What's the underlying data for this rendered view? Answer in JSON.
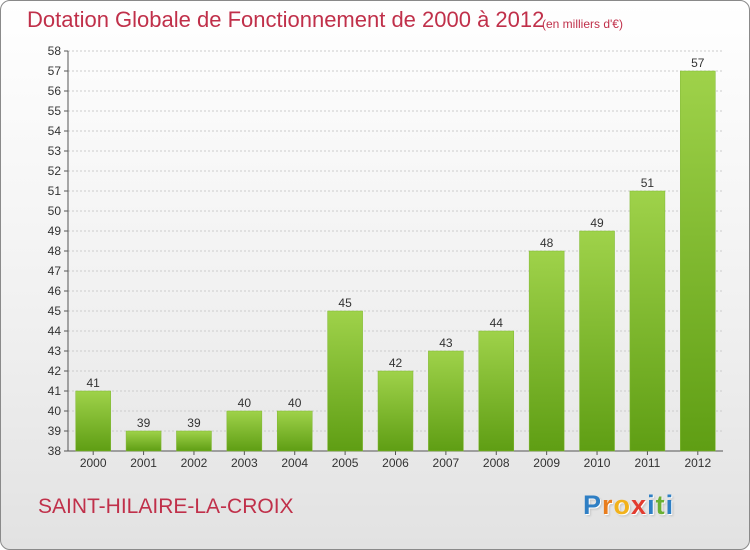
{
  "chart_data": {
    "type": "bar",
    "title": "Dotation Globale de Fonctionnement de 2000 à 2012",
    "subtitle": "(en milliers d'€)",
    "categories": [
      "2000",
      "2001",
      "2002",
      "2003",
      "2004",
      "2005",
      "2006",
      "2007",
      "2008",
      "2009",
      "2010",
      "2011",
      "2012"
    ],
    "values": [
      41,
      39,
      39,
      40,
      40,
      45,
      42,
      43,
      44,
      48,
      49,
      51,
      57
    ],
    "ylim": [
      38,
      58
    ],
    "yticks": [
      38,
      39,
      40,
      41,
      42,
      43,
      44,
      45,
      46,
      47,
      48,
      49,
      50,
      51,
      52,
      53,
      54,
      55,
      56,
      57,
      58
    ],
    "grid": true,
    "colors": {
      "bar_light": "#9fd24a",
      "bar_dark": "#5f9e14",
      "grid": "#cccccc"
    }
  },
  "footer": {
    "city": "SAINT-HILAIRE-LA-CROIX",
    "logo_letters": [
      {
        "char": "P",
        "color": "#2f7fc4"
      },
      {
        "char": "r",
        "color": "#e87d1e"
      },
      {
        "char": "o",
        "color": "#f2b21b"
      },
      {
        "char": "x",
        "color": "#e23b2e"
      },
      {
        "char": "i",
        "color": "#2f7fc4"
      },
      {
        "char": "t",
        "color": "#6ab034"
      },
      {
        "char": "i",
        "color": "#2f7fc4"
      }
    ]
  }
}
